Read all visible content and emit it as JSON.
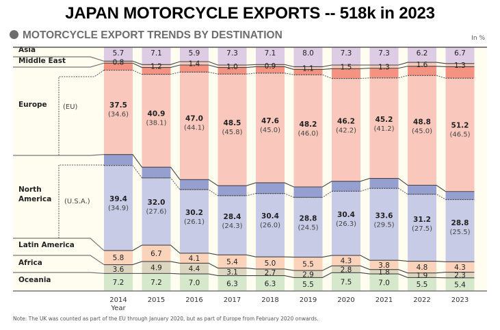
{
  "header": {
    "title": "JAPAN MOTORCYCLE EXPORTS -- 518k in 2023",
    "subtitle": "MOTORCYCLE EXPORT TRENDS BY DESTINATION",
    "unit": "In %"
  },
  "note": "Note:  The UK was counted as part of the EU through January 2020, but as part of Europe from February 2020 onwards.",
  "chart_data": {
    "type": "bar",
    "stacked": true,
    "normalized": true,
    "title": "MOTORCYCLE EXPORT TRENDS BY DESTINATION",
    "unit": "In %",
    "xlabel": "Year",
    "ylabel": "",
    "ylim": [
      0,
      100
    ],
    "grid": false,
    "legend": "left",
    "categories": [
      "2014",
      "2015",
      "2016",
      "2017",
      "2018",
      "2019",
      "2020",
      "2021",
      "2022",
      "2023"
    ],
    "series": [
      {
        "name": "Oceania",
        "color": "#d5e8cc",
        "values": [
          7.2,
          7.2,
          7.0,
          6.3,
          6.3,
          5.5,
          7.5,
          7.0,
          5.5,
          5.4
        ]
      },
      {
        "name": "Africa",
        "color": "#dcd5c0",
        "values": [
          3.6,
          4.9,
          4.4,
          3.1,
          2.7,
          2.9,
          2.8,
          1.8,
          1.9,
          2.3
        ]
      },
      {
        "name": "Latin America",
        "color": "#fbd3bb",
        "values": [
          5.8,
          6.7,
          4.1,
          5.4,
          5.0,
          5.5,
          4.3,
          3.8,
          4.8,
          4.3
        ]
      },
      {
        "name": "North America",
        "color": "#c7cbe6",
        "sub_color": "#959fd0",
        "sub_label": "(U.S.A.)",
        "values": [
          39.4,
          32.0,
          30.2,
          28.4,
          30.4,
          28.8,
          30.4,
          33.6,
          31.2,
          28.8
        ],
        "sub_values": [
          34.9,
          27.6,
          26.1,
          24.3,
          26.0,
          24.5,
          26.3,
          29.5,
          27.5,
          25.5
        ]
      },
      {
        "name": "Europe",
        "color": "#f9c7bb",
        "sub_color": "#f59383",
        "sub_label": "(EU)",
        "values": [
          37.5,
          40.9,
          47.0,
          48.5,
          47.6,
          48.2,
          46.2,
          45.2,
          48.8,
          51.2
        ],
        "sub_values": [
          34.6,
          38.1,
          44.1,
          45.8,
          45.0,
          46.0,
          42.2,
          41.2,
          45.0,
          46.5
        ]
      },
      {
        "name": "Middle East",
        "color": "#f2c9bb",
        "values": [
          0.8,
          1.2,
          1.4,
          1.0,
          0.9,
          1.1,
          1.5,
          1.3,
          1.6,
          1.3
        ]
      },
      {
        "name": "Asia",
        "color": "#decce5",
        "values": [
          5.7,
          7.1,
          5.9,
          7.3,
          7.1,
          8.0,
          7.3,
          7.3,
          6.2,
          6.7
        ]
      }
    ]
  }
}
